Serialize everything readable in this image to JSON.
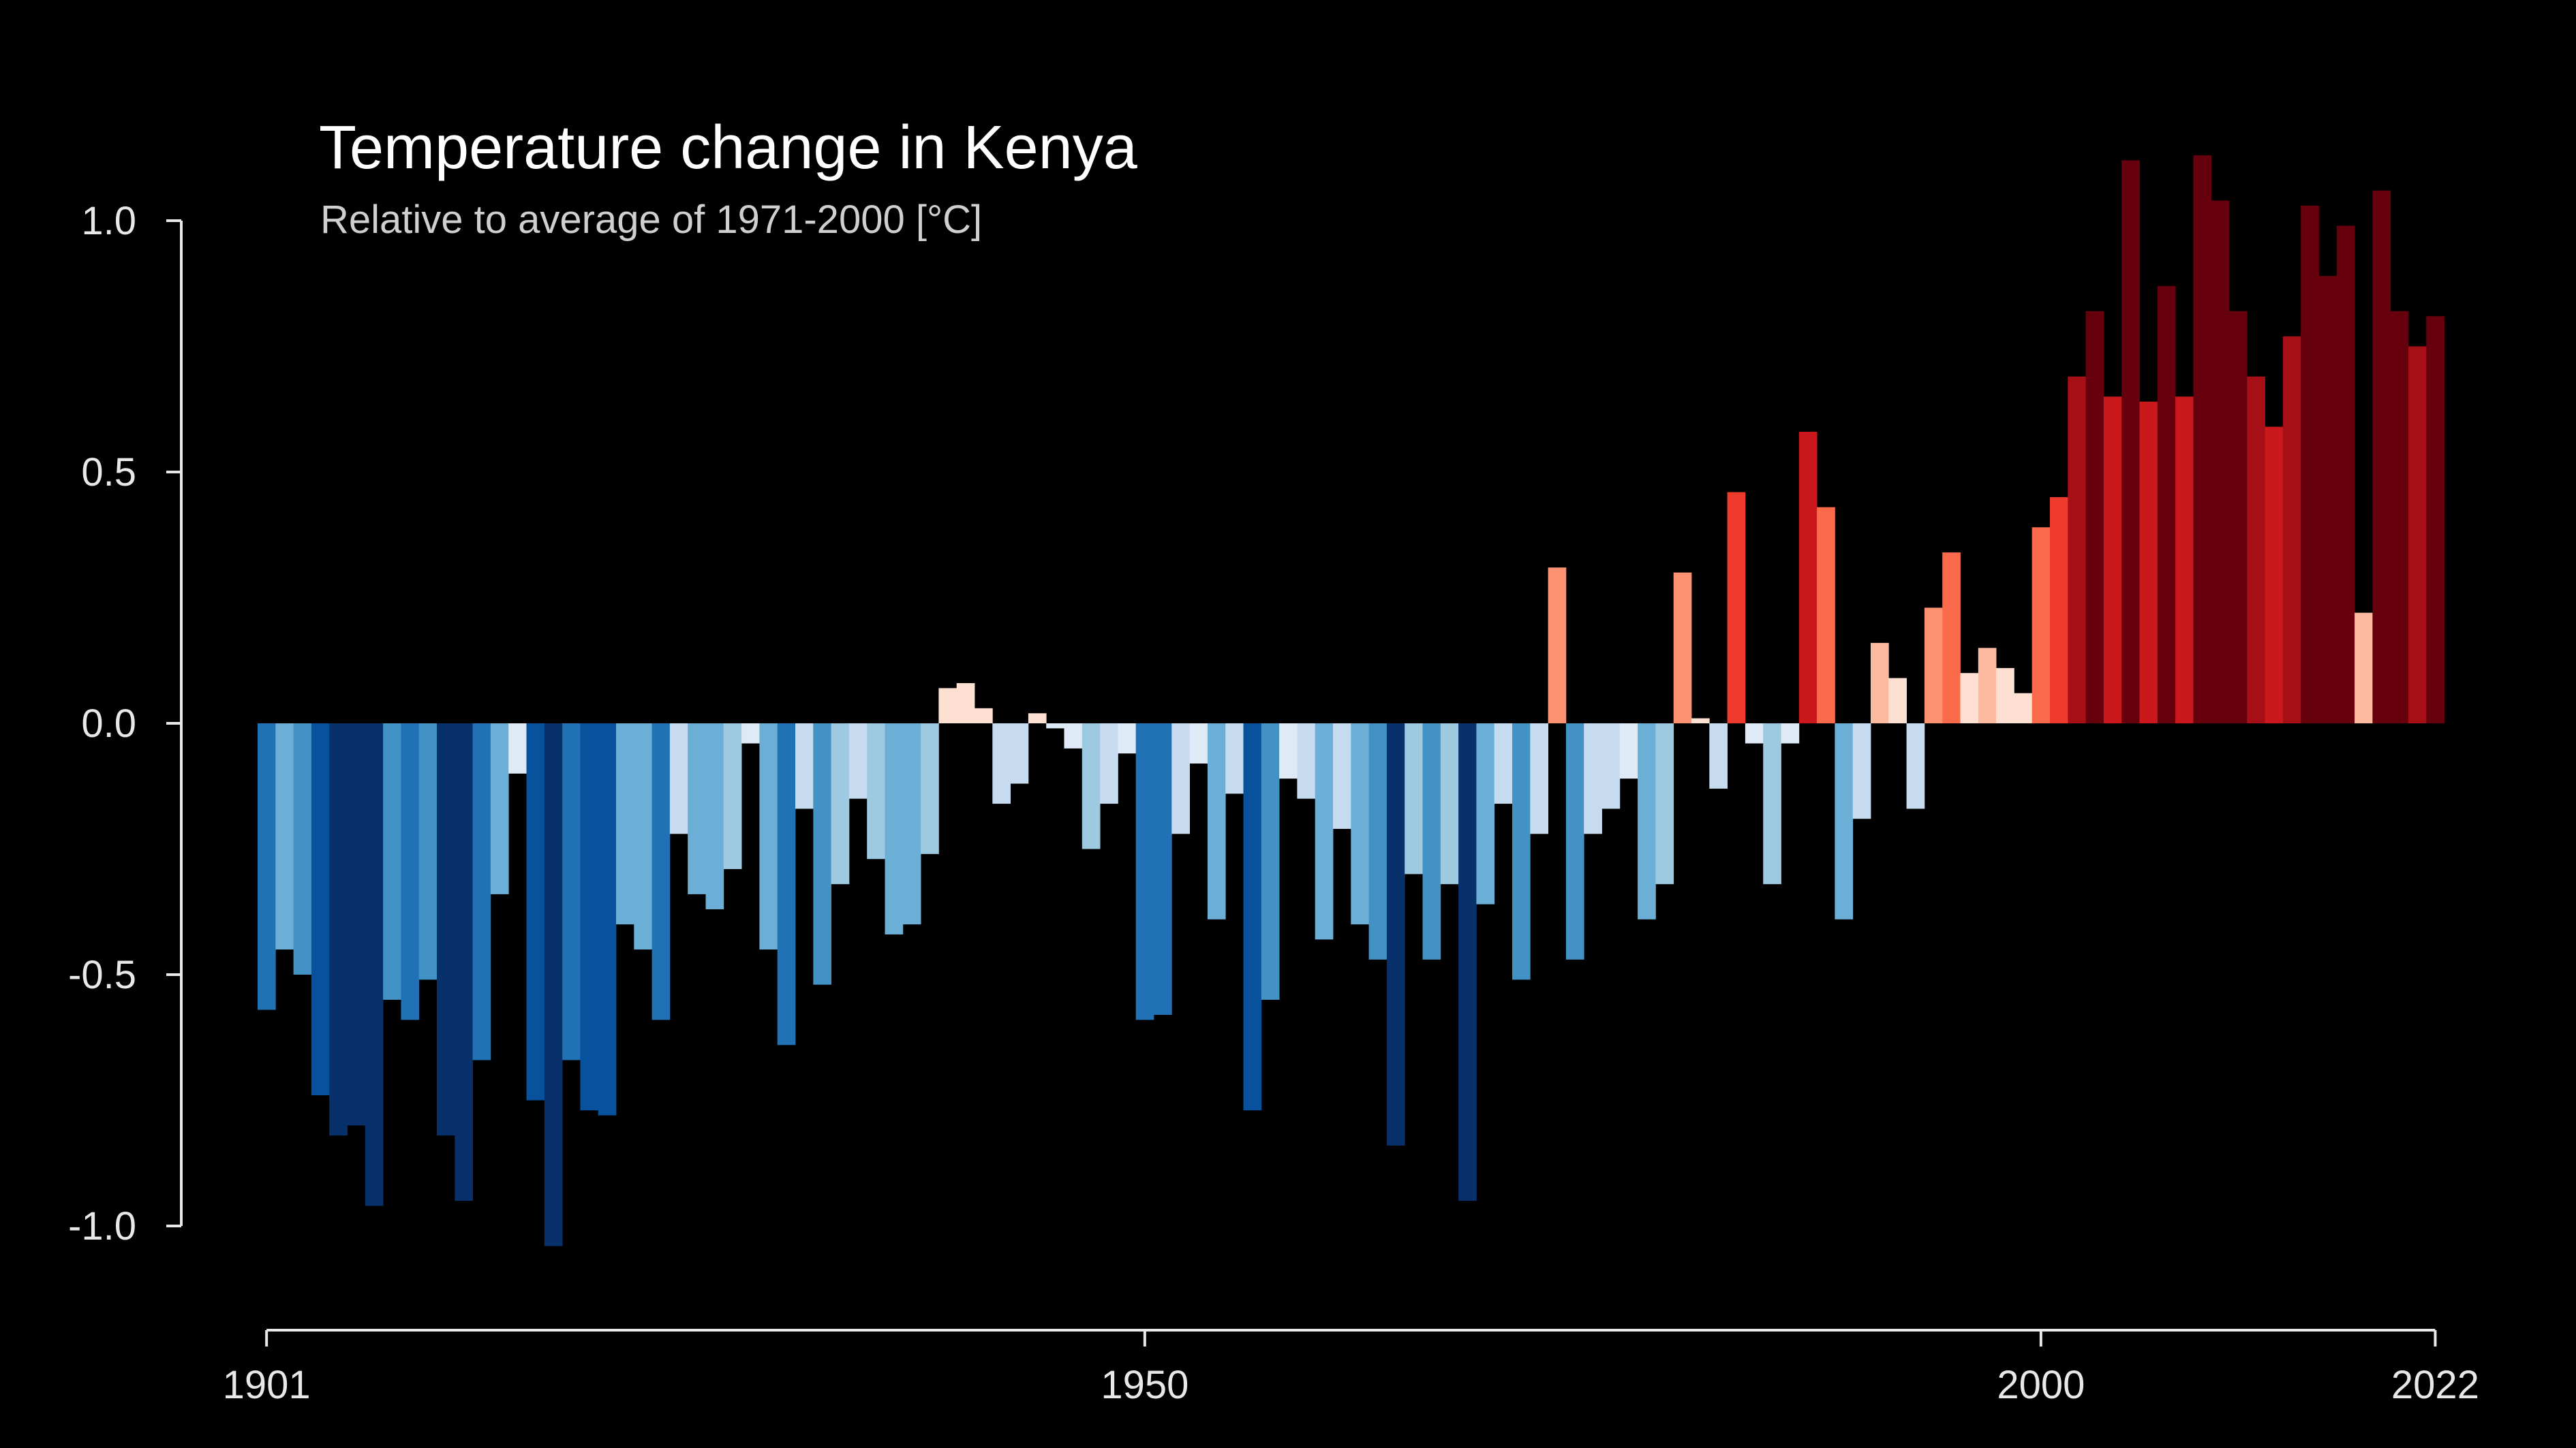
{
  "chart_data": {
    "type": "bar",
    "title": "Temperature change in Kenya",
    "subtitle": "Relative to average of 1971-2000  [°C]",
    "xlabel": "",
    "ylabel": "",
    "x_start": 1901,
    "x_end": 2022,
    "ylim": [
      -1.1,
      1.15
    ],
    "x_tick_labels": [
      "1901",
      "1950",
      "2000",
      "2022"
    ],
    "y_tick_labels": [
      "1.0",
      "0.5",
      "0.0",
      "-0.5",
      "-1.0"
    ],
    "grid": false,
    "legend": "none",
    "colors": {
      "background": "#000000",
      "text": "#ffffff",
      "axis": "#e8e8e8",
      "scale": [
        "#08306b",
        "#08519c",
        "#2171b5",
        "#4292c6",
        "#6baed6",
        "#9ecae1",
        "#c6dbef",
        "#deebf7",
        "#fee0d2",
        "#fcbba1",
        "#fc9272",
        "#fb6a4a",
        "#ef3b2c",
        "#cb181d",
        "#a50f15",
        "#67000d"
      ]
    },
    "years": [
      1901,
      1902,
      1903,
      1904,
      1905,
      1906,
      1907,
      1908,
      1909,
      1910,
      1911,
      1912,
      1913,
      1914,
      1915,
      1916,
      1917,
      1918,
      1919,
      1920,
      1921,
      1922,
      1923,
      1924,
      1925,
      1926,
      1927,
      1928,
      1929,
      1930,
      1931,
      1932,
      1933,
      1934,
      1935,
      1936,
      1937,
      1938,
      1939,
      1940,
      1941,
      1942,
      1943,
      1944,
      1945,
      1946,
      1947,
      1948,
      1949,
      1950,
      1951,
      1952,
      1953,
      1954,
      1955,
      1956,
      1957,
      1958,
      1959,
      1960,
      1961,
      1962,
      1963,
      1964,
      1965,
      1966,
      1967,
      1968,
      1969,
      1970,
      1971,
      1972,
      1973,
      1974,
      1975,
      1976,
      1977,
      1978,
      1979,
      1980,
      1981,
      1982,
      1983,
      1984,
      1985,
      1986,
      1987,
      1988,
      1989,
      1990,
      1991,
      1992,
      1993,
      1994,
      1995,
      1996,
      1997,
      1998,
      1999,
      2000,
      2001,
      2002,
      2003,
      2004,
      2005,
      2006,
      2007,
      2008,
      2009,
      2010,
      2011,
      2012,
      2013,
      2014,
      2015,
      2016,
      2017,
      2018,
      2019,
      2020,
      2021,
      2022
    ],
    "values": [
      -0.57,
      -0.45,
      -0.5,
      -0.74,
      -0.82,
      -0.8,
      -0.96,
      -0.55,
      -0.59,
      -0.51,
      -0.82,
      -0.95,
      -0.67,
      -0.34,
      -0.1,
      -0.75,
      -1.04,
      -0.67,
      -0.77,
      -0.78,
      -0.4,
      -0.45,
      -0.59,
      -0.22,
      -0.34,
      -0.37,
      -0.29,
      -0.04,
      -0.45,
      -0.64,
      -0.17,
      -0.52,
      -0.32,
      -0.15,
      -0.27,
      -0.42,
      -0.4,
      -0.26,
      0.07,
      0.08,
      0.03,
      -0.16,
      -0.12,
      0.02,
      -0.01,
      -0.05,
      -0.25,
      -0.16,
      -0.06,
      -0.59,
      -0.58,
      -0.22,
      -0.08,
      -0.39,
      -0.14,
      -0.77,
      -0.55,
      -0.11,
      -0.15,
      -0.43,
      -0.21,
      -0.4,
      -0.47,
      -0.84,
      -0.3,
      -0.47,
      -0.32,
      -0.95,
      -0.36,
      -0.16,
      -0.51,
      -0.22,
      0.31,
      -0.47,
      -0.22,
      -0.17,
      -0.11,
      -0.39,
      -0.32,
      0.3,
      0.01,
      -0.13,
      0.46,
      -0.04,
      -0.32,
      -0.04,
      0.58,
      0.43,
      -0.39,
      -0.19,
      0.16,
      0.09,
      -0.17,
      0.23,
      0.34,
      0.1,
      0.15,
      0.11,
      0.06,
      0.39,
      0.45,
      0.69,
      0.82,
      0.65,
      1.12,
      0.64,
      0.87,
      0.65,
      1.13,
      1.04,
      0.82,
      0.69,
      0.59,
      0.77,
      1.03,
      0.89,
      0.99,
      0.22,
      1.06,
      0.82,
      0.75,
      0.81
    ]
  }
}
